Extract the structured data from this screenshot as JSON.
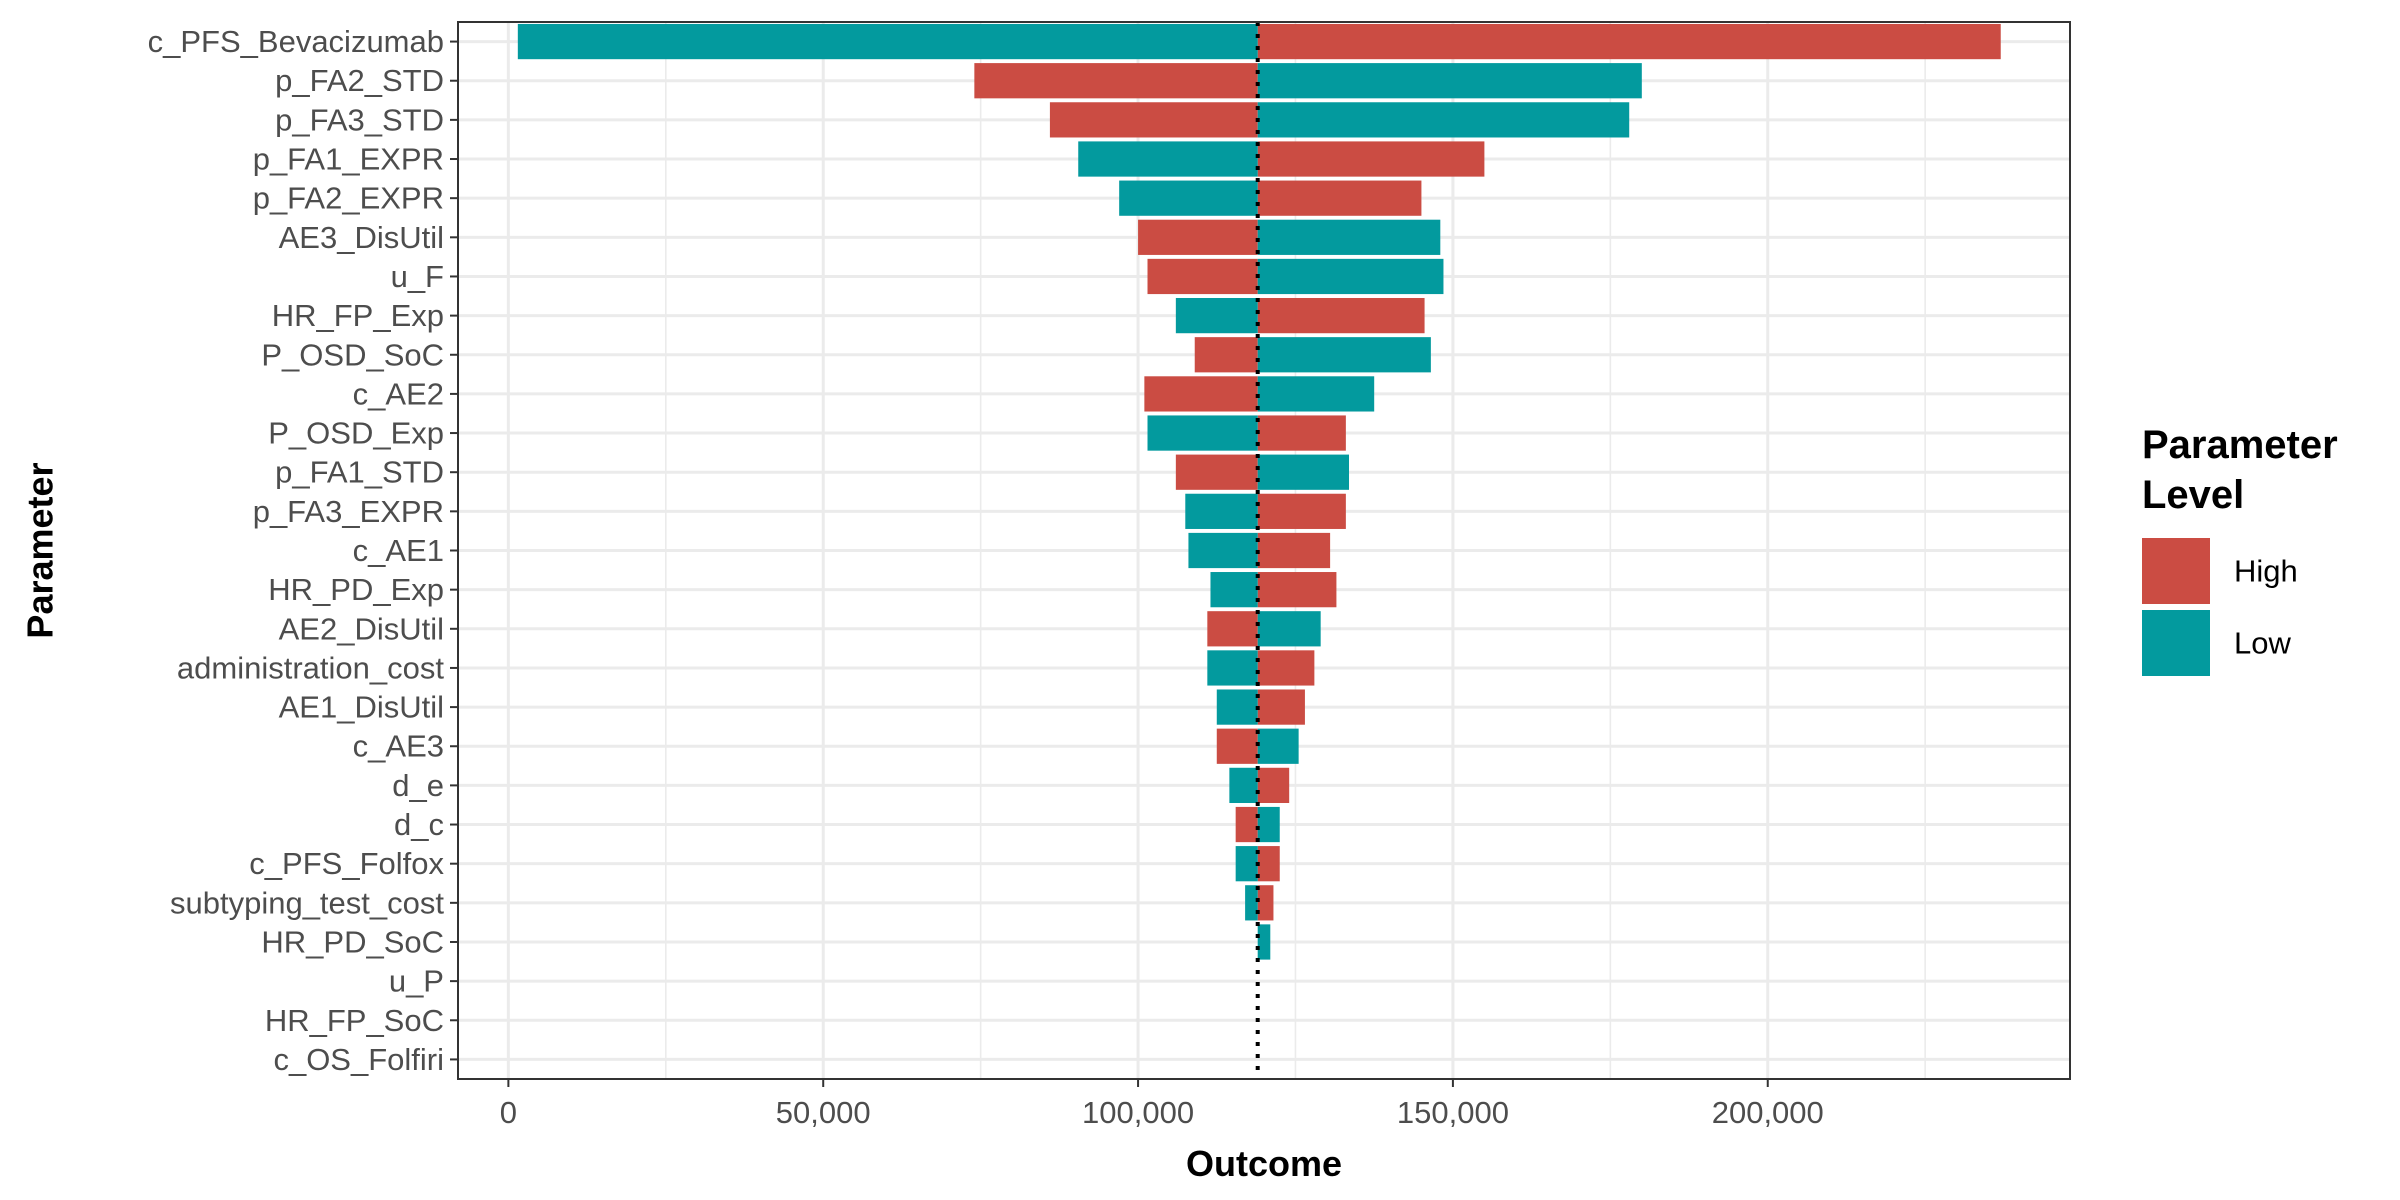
{
  "chart_data": {
    "type": "bar",
    "orientation": "horizontal",
    "baseline": 119000,
    "xlabel": "Outcome",
    "ylabel": "Parameter",
    "xlim": [
      -8000,
      248000
    ],
    "x_ticks": [
      0,
      50000,
      100000,
      150000,
      200000
    ],
    "x_tick_labels": [
      "0",
      "50,000",
      "100,000",
      "150,000",
      "200,000"
    ],
    "grid": true,
    "legend": {
      "title": "Parameter Level",
      "position": "right",
      "entries": [
        "High",
        "Low"
      ]
    },
    "colors": {
      "High": "#CB4C43",
      "Low": "#039A9E"
    },
    "categories": [
      "c_PFS_Bevacizumab",
      "p_FA2_STD",
      "p_FA3_STD",
      "p_FA1_EXPR",
      "p_FA2_EXPR",
      "AE3_DisUtil",
      "u_F",
      "HR_FP_Exp",
      "P_OSD_SoC",
      "c_AE2",
      "P_OSD_Exp",
      "p_FA1_STD",
      "p_FA3_EXPR",
      "c_AE1",
      "HR_PD_Exp",
      "AE2_DisUtil",
      "administration_cost",
      "AE1_DisUtil",
      "c_AE3",
      "d_e",
      "d_c",
      "c_PFS_Folfox",
      "subtyping_test_cost",
      "HR_PD_SoC",
      "u_P",
      "HR_FP_SoC",
      "c_OS_Folfiri"
    ],
    "series": [
      {
        "name": "High",
        "values": [
          237000,
          74000,
          86000,
          155000,
          145000,
          100000,
          101500,
          145500,
          109000,
          101000,
          133000,
          106000,
          133000,
          130500,
          131500,
          111000,
          128000,
          126500,
          112500,
          124000,
          115500,
          122500,
          121500,
          119000,
          119000,
          119000,
          119000
        ]
      },
      {
        "name": "Low",
        "values": [
          1500,
          180000,
          178000,
          90500,
          97000,
          148000,
          148500,
          106000,
          146500,
          137500,
          101500,
          133500,
          107500,
          108000,
          111500,
          129000,
          111000,
          112500,
          125500,
          114500,
          122500,
          115500,
          117000,
          121000,
          119000,
          119000,
          119000
        ]
      }
    ]
  }
}
